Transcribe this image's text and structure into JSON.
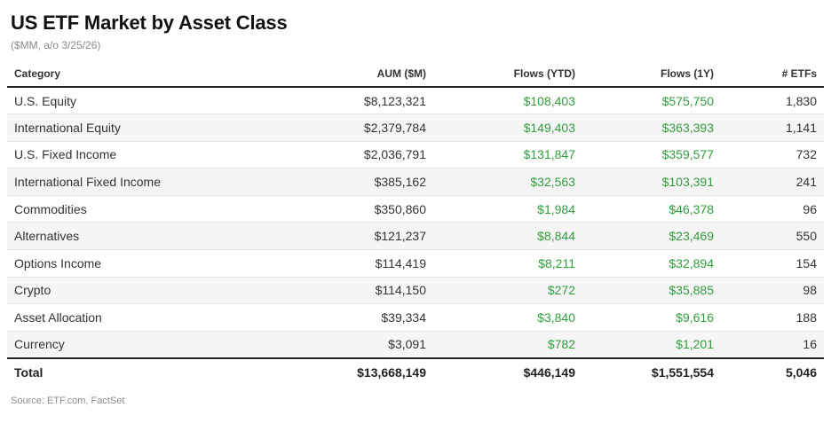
{
  "title": "US ETF Market by Asset Class",
  "subtitle": "($MM, a/o 3/25/26)",
  "columns": [
    "Category",
    "AUM ($M)",
    "Flows (YTD)",
    "Flows (1Y)",
    "# ETFs"
  ],
  "rows": [
    {
      "category": "U.S. Equity",
      "aum": "$8,123,321",
      "flows_ytd": "$108,403",
      "flows_1y": "$575,750",
      "etfs": "1,830"
    },
    {
      "category": "International Equity",
      "aum": "$2,379,784",
      "flows_ytd": "$149,403",
      "flows_1y": "$363,393",
      "etfs": "1,141"
    },
    {
      "category": "U.S. Fixed Income",
      "aum": "$2,036,791",
      "flows_ytd": "$131,847",
      "flows_1y": "$359,577",
      "etfs": "732"
    },
    {
      "category": "International Fixed Income",
      "aum": "$385,162",
      "flows_ytd": "$32,563",
      "flows_1y": "$103,391",
      "etfs": "241"
    },
    {
      "category": "Commodities",
      "aum": "$350,860",
      "flows_ytd": "$1,984",
      "flows_1y": "$46,378",
      "etfs": "96"
    },
    {
      "category": "Alternatives",
      "aum": "$121,237",
      "flows_ytd": "$8,844",
      "flows_1y": "$23,469",
      "etfs": "550"
    },
    {
      "category": "Options Income",
      "aum": "$114,419",
      "flows_ytd": "$8,211",
      "flows_1y": "$32,894",
      "etfs": "154"
    },
    {
      "category": "Crypto",
      "aum": "$114,150",
      "flows_ytd": "$272",
      "flows_1y": "$35,885",
      "etfs": "98"
    },
    {
      "category": "Asset Allocation",
      "aum": "$39,334",
      "flows_ytd": "$3,840",
      "flows_1y": "$9,616",
      "etfs": "188"
    },
    {
      "category": "Currency",
      "aum": "$3,091",
      "flows_ytd": "$782",
      "flows_1y": "$1,201",
      "etfs": "16"
    }
  ],
  "total": {
    "category": "Total",
    "aum": "$13,668,149",
    "flows_ytd": "$446,149",
    "flows_1y": "$1,551,554",
    "etfs": "5,046"
  },
  "source": "Source: ETF.com, FactSet",
  "colors": {
    "positive_flow": "#2e9e3c",
    "row_stripe": "#f5f5f5",
    "rule": "#222222"
  }
}
